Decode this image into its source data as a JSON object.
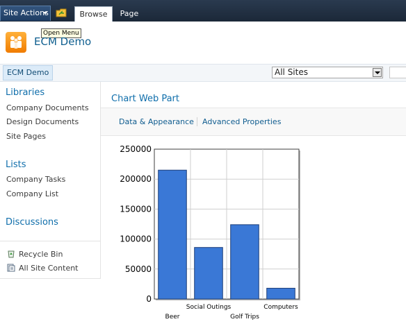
{
  "ribbon": {
    "site_actions": "Site Actions",
    "tabs": [
      {
        "label": "Browse"
      },
      {
        "label": "Page"
      }
    ],
    "tooltip": "Open Menu"
  },
  "site": {
    "title": "ECM Demo"
  },
  "topnav": {
    "home": "ECM Demo",
    "scope": "All Sites"
  },
  "quicklaunch": {
    "libraries": {
      "heading": "Libraries",
      "items": [
        "Company Documents",
        "Design Documents",
        "Site Pages"
      ]
    },
    "lists": {
      "heading": "Lists",
      "items": [
        "Company Tasks",
        "Company List"
      ]
    },
    "discussions": {
      "heading": "Discussions"
    },
    "recycle_bin": "Recycle Bin",
    "all_site_content": "All Site Content"
  },
  "webpart": {
    "title": "Chart Web Part",
    "links": [
      "Data & Appearance",
      "Advanced Properties"
    ]
  },
  "colors": {
    "bar": "#3a78d6",
    "bar_border": "#1e3f78",
    "link": "#0f6eab"
  },
  "chart_data": {
    "type": "bar",
    "categories": [
      "Beer",
      "Social Outings",
      "Golf Trips",
      "Computers"
    ],
    "values": [
      215000,
      86000,
      124000,
      18000
    ],
    "ylim": [
      0,
      250000
    ],
    "yticks": [
      0,
      50000,
      100000,
      150000,
      200000,
      250000
    ],
    "title": "",
    "xlabel": "",
    "ylabel": "",
    "grid": true,
    "legend": "none"
  }
}
